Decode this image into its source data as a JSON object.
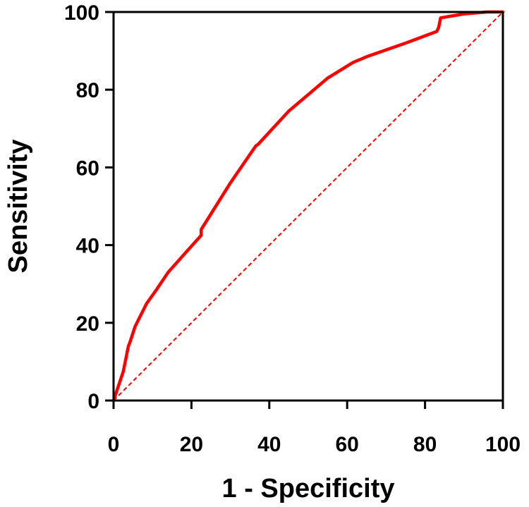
{
  "chart_data": {
    "type": "line",
    "title": "",
    "xlabel": "1 - Specificity",
    "ylabel": "Sensitivity",
    "xlim": [
      0,
      100
    ],
    "ylim": [
      0,
      100
    ],
    "xticks": [
      0,
      20,
      40,
      60,
      80,
      100
    ],
    "yticks": [
      0,
      20,
      40,
      60,
      80,
      100
    ],
    "grid": false,
    "series": [
      {
        "name": "ROC curve",
        "color": "#ff0000",
        "style": "solid",
        "x": [
          0,
          1,
          2.5,
          3.8,
          4.2,
          5.5,
          8.5,
          11,
          14,
          18,
          22.5,
          22.5,
          25,
          30,
          36.5,
          37.2,
          45,
          55,
          61.5,
          65,
          75,
          83,
          83.5,
          84,
          90,
          96,
          100
        ],
        "y": [
          0,
          3,
          7.5,
          14,
          15,
          19,
          25,
          28.5,
          33,
          37.5,
          42.5,
          44,
          48,
          56,
          65.5,
          66,
          74.5,
          83,
          87,
          88.5,
          92,
          95,
          96,
          98.5,
          99.5,
          100,
          100
        ]
      },
      {
        "name": "Reference line",
        "color": "#ff0000",
        "style": "dashed",
        "x": [
          0,
          100
        ],
        "y": [
          0,
          100
        ]
      }
    ]
  }
}
